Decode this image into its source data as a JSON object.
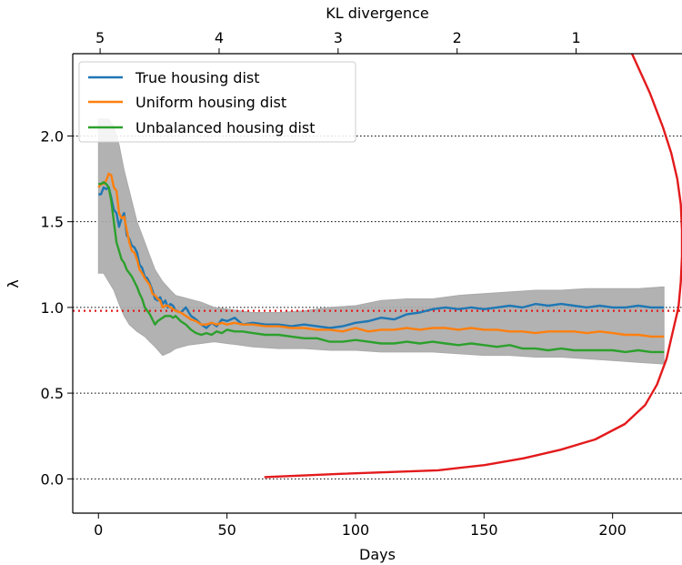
{
  "chart_data": {
    "type": "line",
    "xlabel": "Days",
    "ylabel": "λ",
    "top_xlabel": "KL divergence",
    "xlim": [
      -10,
      227
    ],
    "ylim": [
      -0.2,
      2.48
    ],
    "x_ticks": [
      0,
      50,
      100,
      150,
      200
    ],
    "x_tick_labels": [
      "0",
      "50",
      "100",
      "150",
      "200"
    ],
    "y_ticks": [
      0.0,
      0.5,
      1.0,
      1.5,
      2.0
    ],
    "y_tick_labels": [
      "0.0",
      "0.5",
      "1.0",
      "1.5",
      "2.0"
    ],
    "top_ticks": [
      5,
      4,
      3,
      2,
      1
    ],
    "top_tick_labels": [
      "5",
      "4",
      "3",
      "2",
      "1"
    ],
    "top_axis": {
      "kl_at_left": 5.23,
      "kl_at_right": 0.11
    },
    "legend": {
      "location": "top-left"
    },
    "grid": "horizontal dotted at y ticks",
    "reference_line": {
      "y": 0.98,
      "color": "#e31a1c",
      "style": "dotted"
    },
    "colors": {
      "gray_band": "#aaaaaa",
      "kl_curve": "#e31a1c",
      "gridline": "#000000"
    },
    "series": [
      {
        "name": "True housing dist",
        "color": "#1f77b4",
        "x": [
          0,
          1,
          2,
          3,
          4,
          5,
          6,
          7,
          8,
          9,
          10,
          11,
          12,
          13,
          14,
          15,
          16,
          17,
          18,
          19,
          20,
          21,
          22,
          23,
          24,
          25,
          26,
          27,
          28,
          29,
          30,
          32,
          34,
          36,
          38,
          40,
          42,
          44,
          46,
          48,
          50,
          53,
          56,
          60,
          65,
          70,
          75,
          80,
          85,
          90,
          95,
          100,
          105,
          110,
          115,
          120,
          125,
          130,
          135,
          140,
          145,
          150,
          155,
          160,
          165,
          170,
          175,
          180,
          185,
          190,
          195,
          200,
          205,
          210,
          215,
          220
        ],
        "values": [
          1.66,
          1.66,
          1.7,
          1.69,
          1.7,
          1.64,
          1.57,
          1.55,
          1.47,
          1.52,
          1.55,
          1.42,
          1.4,
          1.36,
          1.35,
          1.32,
          1.25,
          1.23,
          1.18,
          1.17,
          1.14,
          1.1,
          1.05,
          1.04,
          1.06,
          1.02,
          1.04,
          1.0,
          1.02,
          1.01,
          0.98,
          0.97,
          1.0,
          0.95,
          0.93,
          0.9,
          0.88,
          0.91,
          0.89,
          0.93,
          0.92,
          0.94,
          0.9,
          0.91,
          0.9,
          0.9,
          0.89,
          0.9,
          0.89,
          0.88,
          0.89,
          0.91,
          0.92,
          0.94,
          0.93,
          0.96,
          0.97,
          0.99,
          1.0,
          0.99,
          1.0,
          0.99,
          1.0,
          1.01,
          1.0,
          1.02,
          1.01,
          1.02,
          1.01,
          1.0,
          1.01,
          1.0,
          1.0,
          1.01,
          1.0,
          1.0
        ]
      },
      {
        "name": "Uniform housing dist",
        "color": "#ff7f0e",
        "x": [
          0,
          1,
          2,
          3,
          4,
          5,
          6,
          7,
          8,
          9,
          10,
          11,
          12,
          13,
          14,
          15,
          16,
          17,
          18,
          19,
          20,
          21,
          22,
          23,
          24,
          25,
          26,
          27,
          28,
          29,
          30,
          32,
          34,
          36,
          38,
          40,
          42,
          44,
          46,
          48,
          50,
          53,
          56,
          60,
          65,
          70,
          75,
          80,
          85,
          90,
          95,
          100,
          105,
          110,
          115,
          120,
          125,
          130,
          135,
          140,
          145,
          150,
          155,
          160,
          165,
          170,
          175,
          180,
          185,
          190,
          195,
          200,
          205,
          210,
          215,
          220
        ],
        "values": [
          1.7,
          1.72,
          1.72,
          1.74,
          1.78,
          1.77,
          1.7,
          1.68,
          1.55,
          1.52,
          1.53,
          1.45,
          1.38,
          1.33,
          1.32,
          1.28,
          1.22,
          1.2,
          1.17,
          1.15,
          1.13,
          1.08,
          1.07,
          1.05,
          1.04,
          1.0,
          1.01,
          1.01,
          1.0,
          0.99,
          0.98,
          0.97,
          0.95,
          0.93,
          0.92,
          0.9,
          0.9,
          0.91,
          0.9,
          0.91,
          0.9,
          0.91,
          0.9,
          0.9,
          0.89,
          0.89,
          0.88,
          0.88,
          0.87,
          0.87,
          0.86,
          0.88,
          0.86,
          0.87,
          0.87,
          0.88,
          0.87,
          0.88,
          0.88,
          0.87,
          0.88,
          0.87,
          0.87,
          0.86,
          0.86,
          0.85,
          0.86,
          0.86,
          0.86,
          0.85,
          0.86,
          0.85,
          0.84,
          0.84,
          0.83,
          0.83
        ]
      },
      {
        "name": "Unbalanced housing dist",
        "color": "#2ca02c",
        "x": [
          0,
          1,
          2,
          3,
          4,
          5,
          6,
          7,
          8,
          9,
          10,
          11,
          12,
          13,
          14,
          15,
          16,
          17,
          18,
          19,
          20,
          21,
          22,
          23,
          24,
          25,
          26,
          27,
          28,
          29,
          30,
          32,
          34,
          36,
          38,
          40,
          42,
          44,
          46,
          48,
          50,
          53,
          56,
          60,
          65,
          70,
          75,
          80,
          85,
          90,
          95,
          100,
          105,
          110,
          115,
          120,
          125,
          130,
          135,
          140,
          145,
          150,
          155,
          160,
          165,
          170,
          175,
          180,
          185,
          190,
          195,
          200,
          205,
          210,
          215,
          220
        ],
        "values": [
          1.72,
          1.72,
          1.73,
          1.72,
          1.7,
          1.62,
          1.5,
          1.38,
          1.33,
          1.28,
          1.26,
          1.22,
          1.2,
          1.18,
          1.15,
          1.12,
          1.08,
          1.05,
          1.0,
          0.98,
          0.96,
          0.93,
          0.9,
          0.92,
          0.93,
          0.94,
          0.95,
          0.95,
          0.95,
          0.94,
          0.95,
          0.92,
          0.9,
          0.87,
          0.85,
          0.84,
          0.85,
          0.84,
          0.86,
          0.85,
          0.87,
          0.86,
          0.86,
          0.85,
          0.84,
          0.84,
          0.83,
          0.82,
          0.82,
          0.8,
          0.8,
          0.81,
          0.8,
          0.79,
          0.79,
          0.8,
          0.79,
          0.8,
          0.79,
          0.78,
          0.79,
          0.78,
          0.77,
          0.78,
          0.76,
          0.76,
          0.75,
          0.76,
          0.75,
          0.75,
          0.75,
          0.75,
          0.74,
          0.75,
          0.74,
          0.74
        ]
      }
    ],
    "gray_envelope": {
      "x": [
        0,
        2,
        4,
        6,
        8,
        10,
        12,
        15,
        18,
        20,
        22,
        25,
        28,
        30,
        35,
        40,
        45,
        50,
        55,
        60,
        70,
        80,
        90,
        100,
        110,
        120,
        130,
        140,
        150,
        160,
        170,
        180,
        190,
        200,
        210,
        220
      ],
      "upper": [
        2.1,
        2.1,
        2.1,
        2.05,
        1.95,
        1.8,
        1.68,
        1.5,
        1.38,
        1.3,
        1.22,
        1.15,
        1.1,
        1.07,
        1.05,
        1.03,
        1.0,
        0.99,
        0.98,
        0.97,
        0.97,
        0.98,
        1.0,
        1.01,
        1.04,
        1.05,
        1.05,
        1.07,
        1.08,
        1.09,
        1.1,
        1.1,
        1.11,
        1.11,
        1.11,
        1.12
      ],
      "lower": [
        1.2,
        1.2,
        1.15,
        1.1,
        1.02,
        0.95,
        0.9,
        0.86,
        0.83,
        0.8,
        0.77,
        0.72,
        0.74,
        0.76,
        0.78,
        0.79,
        0.8,
        0.79,
        0.78,
        0.77,
        0.76,
        0.76,
        0.75,
        0.75,
        0.74,
        0.74,
        0.74,
        0.73,
        0.72,
        0.72,
        0.71,
        0.71,
        0.7,
        0.69,
        0.68,
        0.67
      ]
    },
    "kl_curve": {
      "name": "KL divergence",
      "color": "#e31a1c",
      "kl": [
        3.62,
        2.96,
        2.16,
        1.77,
        1.44,
        1.13,
        0.84,
        0.59,
        0.42,
        0.32,
        0.24,
        0.19,
        0.14,
        0.12,
        0.11,
        0.11,
        0.12,
        0.15,
        0.2,
        0.27,
        0.38,
        0.53
      ],
      "lambda": [
        0.01,
        0.03,
        0.05,
        0.08,
        0.12,
        0.17,
        0.23,
        0.32,
        0.43,
        0.55,
        0.7,
        0.85,
        1.0,
        1.15,
        1.3,
        1.45,
        1.6,
        1.75,
        1.9,
        2.05,
        2.25,
        2.48
      ]
    }
  }
}
